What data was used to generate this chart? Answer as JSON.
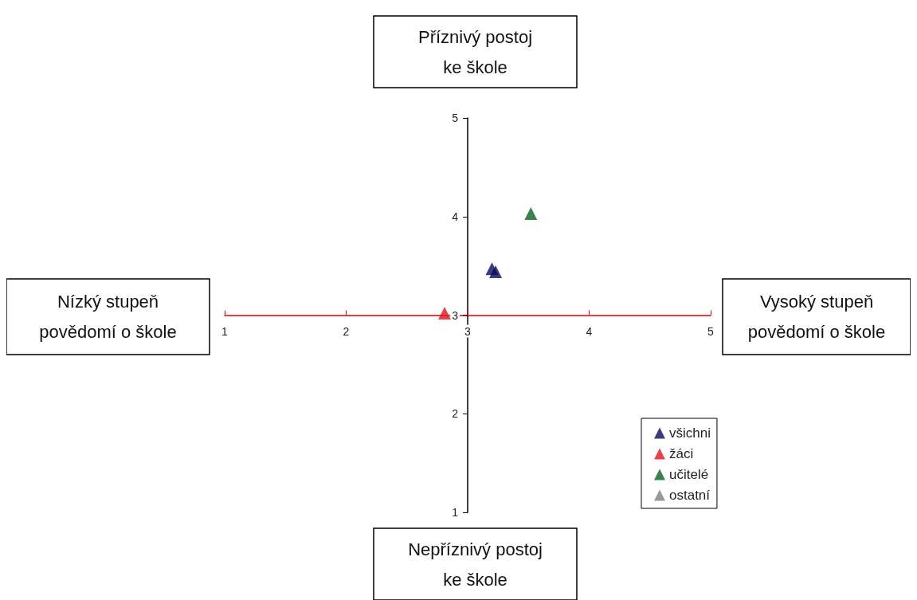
{
  "chart_data": {
    "type": "scatter",
    "annotations": [
      "Příznivý postoj\nke škole",
      "Nízký stupeň\npovědomí o škole",
      "Vysoký stupeň\npovědomí o škole",
      "Nepříznivý postoj\nke škole"
    ],
    "series": [
      {
        "name": "všichni",
        "color": "#0a0a5c",
        "x": [
          3.2,
          3.23
        ],
        "values": [
          3.47,
          3.44
        ]
      },
      {
        "name": "žáci",
        "color": "#e0141e",
        "x": [
          2.81
        ],
        "values": [
          3.02
        ]
      },
      {
        "name": "učitelé",
        "color": "#0a6420",
        "x": [
          3.52
        ],
        "values": [
          4.03
        ]
      },
      {
        "name": "ostatní",
        "color": "#808080"
      }
    ],
    "xlim": [
      1,
      5
    ],
    "xticks": [
      1,
      2,
      3,
      4,
      5
    ],
    "ylim": [
      1,
      5
    ],
    "yticks": [
      1,
      2,
      3,
      4,
      5
    ],
    "marker": "triangle",
    "legend": "bottom right",
    "grid": false
  }
}
